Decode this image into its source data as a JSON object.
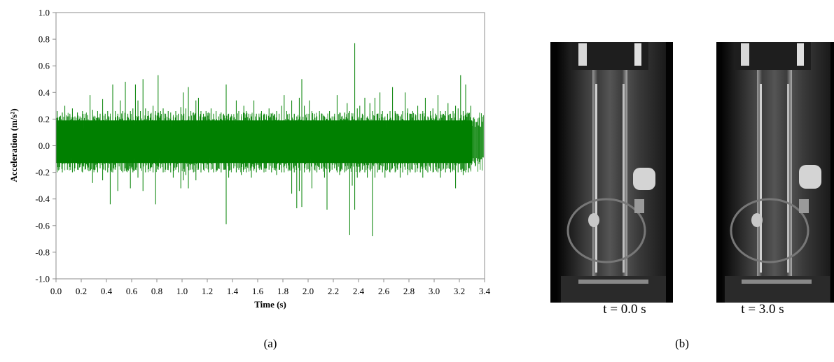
{
  "chart_data": {
    "type": "line",
    "xlabel": "Time (s)",
    "ylabel": "Acceleration (m/s²)",
    "xlim": [
      0.0,
      3.4
    ],
    "ylim": [
      -1.0,
      1.0
    ],
    "xticks": [
      "0.0",
      "0.2",
      "0.4",
      "0.6",
      "0.8",
      "1.0",
      "1.2",
      "1.4",
      "1.6",
      "1.8",
      "2.0",
      "2.2",
      "2.4",
      "2.6",
      "2.8",
      "3.0",
      "3.2",
      "3.4"
    ],
    "yticks": [
      "1.0",
      "0.8",
      "0.6",
      "0.4",
      "0.2",
      "0.0",
      "-0.2",
      "-0.4",
      "-0.6",
      "-0.8",
      "-1.0"
    ],
    "grid": false,
    "series_color": "#008000",
    "series": [
      {
        "x": [
          0.0,
          0.02,
          0.04,
          0.06,
          0.08,
          0.1,
          0.12,
          0.14,
          0.16,
          0.18,
          0.2,
          0.22,
          0.24,
          0.26,
          0.28,
          0.3,
          0.32,
          0.34,
          0.36,
          0.38,
          0.4,
          0.42,
          0.44,
          0.46,
          0.48,
          0.5,
          0.52,
          0.54,
          0.56,
          0.58,
          0.6,
          0.62,
          0.64,
          0.66,
          0.68,
          0.7,
          0.72,
          0.74,
          0.76,
          0.78,
          0.8,
          0.82,
          0.84,
          0.86,
          0.88,
          0.9,
          0.92,
          0.94,
          0.96,
          0.98,
          1.0,
          1.02,
          1.04,
          1.06,
          1.08,
          1.1,
          1.12,
          1.14,
          1.16,
          1.18,
          1.2,
          1.22,
          1.24,
          1.26,
          1.28,
          1.3,
          1.32,
          1.34,
          1.36,
          1.38,
          1.4,
          1.42,
          1.44,
          1.46,
          1.48,
          1.5,
          1.52,
          1.54,
          1.56,
          1.58,
          1.6,
          1.62,
          1.64,
          1.66,
          1.68,
          1.7,
          1.72,
          1.74,
          1.76,
          1.78,
          1.8,
          1.82,
          1.84,
          1.86,
          1.88,
          1.9,
          1.92,
          1.94,
          1.96,
          1.98,
          2.0,
          2.02,
          2.04,
          2.06,
          2.08,
          2.1,
          2.12,
          2.14,
          2.16,
          2.18,
          2.2,
          2.22,
          2.24,
          2.26,
          2.28,
          2.3,
          2.32,
          2.34,
          2.36,
          2.38,
          2.4,
          2.42,
          2.44,
          2.46,
          2.48,
          2.5,
          2.52,
          2.54,
          2.56,
          2.58,
          2.6,
          2.62,
          2.64,
          2.66,
          2.68,
          2.7,
          2.72,
          2.74,
          2.76,
          2.78,
          2.8,
          2.82,
          2.84,
          2.86,
          2.88,
          2.9,
          2.92,
          2.94,
          2.96,
          2.98,
          3.0,
          3.02,
          3.04,
          3.06,
          3.08,
          3.1,
          3.12,
          3.14,
          3.16,
          3.18,
          3.2,
          3.22,
          3.24,
          3.26,
          3.28,
          3.3,
          3.32,
          3.34,
          3.36,
          3.38,
          3.4
        ],
        "y_max": [
          0.26,
          0.22,
          0.25,
          0.3,
          0.22,
          0.24,
          0.28,
          0.22,
          0.25,
          0.22,
          0.26,
          0.24,
          0.23,
          0.38,
          0.27,
          0.22,
          0.26,
          0.24,
          0.35,
          0.24,
          0.26,
          0.22,
          0.46,
          0.26,
          0.24,
          0.34,
          0.26,
          0.48,
          0.24,
          0.26,
          0.28,
          0.46,
          0.34,
          0.26,
          0.5,
          0.28,
          0.26,
          0.24,
          0.3,
          0.26,
          0.53,
          0.26,
          0.28,
          0.24,
          0.26,
          0.25,
          0.22,
          0.26,
          0.24,
          0.29,
          0.4,
          0.28,
          0.44,
          0.26,
          0.25,
          0.34,
          0.36,
          0.26,
          0.24,
          0.26,
          0.25,
          0.28,
          0.24,
          0.26,
          0.22,
          0.25,
          0.24,
          0.46,
          0.24,
          0.22,
          0.21,
          0.34,
          0.26,
          0.22,
          0.3,
          0.26,
          0.24,
          0.22,
          0.34,
          0.24,
          0.22,
          0.26,
          0.24,
          0.22,
          0.28,
          0.24,
          0.22,
          0.26,
          0.24,
          0.3,
          0.38,
          0.26,
          0.24,
          0.34,
          0.24,
          0.22,
          0.36,
          0.5,
          0.3,
          0.24,
          0.34,
          0.26,
          0.24,
          0.22,
          0.26,
          0.24,
          0.22,
          0.2,
          0.26,
          0.22,
          0.24,
          0.38,
          0.24,
          0.22,
          0.25,
          0.32,
          0.26,
          0.22,
          0.77,
          0.28,
          0.3,
          0.24,
          0.36,
          0.22,
          0.32,
          0.26,
          0.36,
          0.24,
          0.4,
          0.26,
          0.22,
          0.24,
          0.26,
          0.44,
          0.26,
          0.24,
          0.22,
          0.26,
          0.4,
          0.28,
          0.24,
          0.26,
          0.22,
          0.3,
          0.24,
          0.26,
          0.36,
          0.22,
          0.26,
          0.28,
          0.24,
          0.38,
          0.26,
          0.24,
          0.26,
          0.32,
          0.24,
          0.26,
          0.3,
          0.28,
          0.53,
          0.26,
          0.46,
          0.24,
          0.3
        ],
        "y_min": [
          -0.18,
          -0.16,
          -0.2,
          -0.14,
          -0.18,
          -0.16,
          -0.2,
          -0.17,
          -0.18,
          -0.16,
          -0.2,
          -0.18,
          -0.17,
          -0.19,
          -0.28,
          -0.18,
          -0.2,
          -0.17,
          -0.26,
          -0.18,
          -0.2,
          -0.44,
          -0.2,
          -0.18,
          -0.34,
          -0.18,
          -0.2,
          -0.17,
          -0.18,
          -0.32,
          -0.2,
          -0.18,
          -0.24,
          -0.17,
          -0.34,
          -0.2,
          -0.18,
          -0.17,
          -0.2,
          -0.44,
          -0.18,
          -0.17,
          -0.2,
          -0.18,
          -0.17,
          -0.2,
          -0.24,
          -0.18,
          -0.2,
          -0.32,
          -0.26,
          -0.22,
          -0.32,
          -0.18,
          -0.2,
          -0.26,
          -0.17,
          -0.2,
          -0.18,
          -0.17,
          -0.2,
          -0.18,
          -0.2,
          -0.18,
          -0.17,
          -0.2,
          -0.18,
          -0.59,
          -0.24,
          -0.18,
          -0.17,
          -0.2,
          -0.18,
          -0.22,
          -0.18,
          -0.2,
          -0.17,
          -0.24,
          -0.18,
          -0.2,
          -0.17,
          -0.18,
          -0.2,
          -0.17,
          -0.18,
          -0.2,
          -0.18,
          -0.22,
          -0.18,
          -0.2,
          -0.2,
          -0.17,
          -0.18,
          -0.36,
          -0.2,
          -0.47,
          -0.34,
          -0.46,
          -0.2,
          -0.18,
          -0.2,
          -0.32,
          -0.18,
          -0.2,
          -0.18,
          -0.17,
          -0.24,
          -0.48,
          -0.2,
          -0.18,
          -0.17,
          -0.2,
          -0.22,
          -0.18,
          -0.2,
          -0.18,
          -0.67,
          -0.3,
          -0.48,
          -0.24,
          -0.2,
          -0.18,
          -0.2,
          -0.24,
          -0.18,
          -0.68,
          -0.24,
          -0.2,
          -0.18,
          -0.2,
          -0.24,
          -0.18,
          -0.2,
          -0.17,
          -0.2,
          -0.18,
          -0.24,
          -0.2,
          -0.18,
          -0.22,
          -0.2,
          -0.18,
          -0.2,
          -0.17,
          -0.2,
          -0.24,
          -0.18,
          -0.2,
          -0.17,
          -0.2,
          -0.18,
          -0.2,
          -0.24,
          -0.18,
          -0.2,
          -0.17,
          -0.2,
          -0.18,
          -0.32,
          -0.2,
          -0.18,
          -0.22,
          -0.2,
          -0.2,
          -0.18
        ]
      }
    ]
  },
  "panel_labels": {
    "a": "(a)",
    "b": "(b)"
  },
  "photos": [
    {
      "caption": "t = 0.0 s"
    },
    {
      "caption": "t = 3.0 s"
    }
  ]
}
